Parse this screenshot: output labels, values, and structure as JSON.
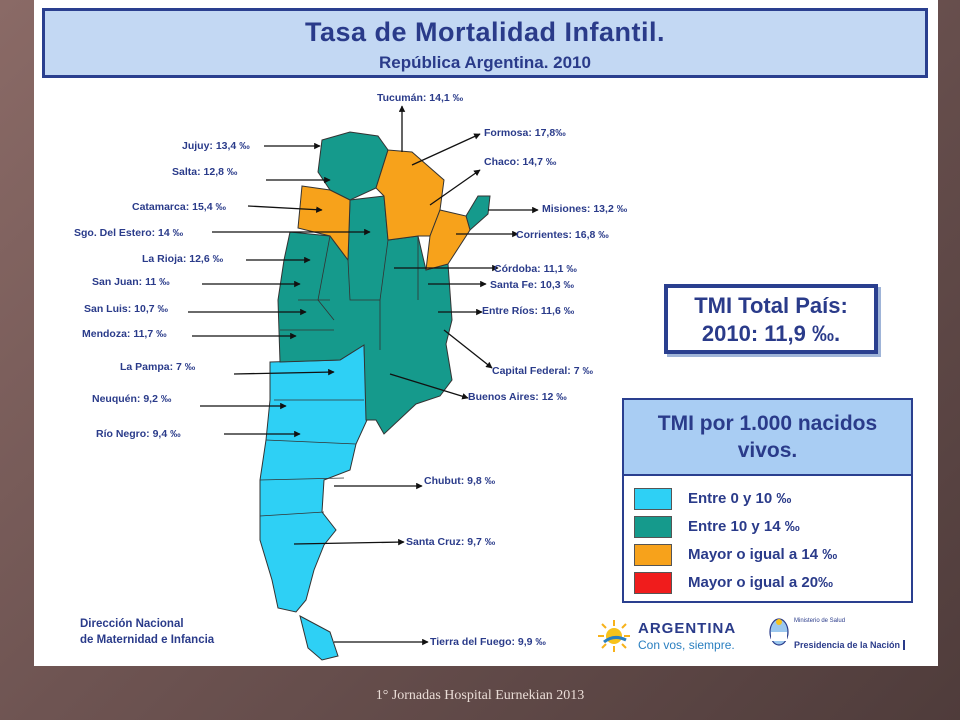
{
  "title": {
    "main": "Tasa de Mortalidad Infantil.",
    "sub": "República Argentina. 2010"
  },
  "colors": {
    "range_0_10": "#2ed0f5",
    "range_10_14": "#159a8c",
    "range_ge14": "#f7a21b",
    "range_ge20": "#f01c1c",
    "text": "#2a3b8a"
  },
  "provinces": [
    {
      "label": "Tucumán: 14,1 ‰"
    },
    {
      "label": "Jujuy: 13,4 ‰"
    },
    {
      "label": "Formosa: 17,8‰"
    },
    {
      "label": "Chaco: 14,7 ‰"
    },
    {
      "label": "Salta: 12,8 ‰"
    },
    {
      "label": "Catamarca: 15,4 ‰"
    },
    {
      "label": "Misiones: 13,2 ‰"
    },
    {
      "label": "Sgo. Del Estero: 14 ‰"
    },
    {
      "label": "Corrientes: 16,8 ‰"
    },
    {
      "label": "La Rioja: 12,6 ‰"
    },
    {
      "label": "Córdoba: 11,1 ‰"
    },
    {
      "label": "San Juan: 11 ‰"
    },
    {
      "label": "Santa Fe: 10,3 ‰"
    },
    {
      "label": "San Luis: 10,7 ‰"
    },
    {
      "label": "Entre Ríos: 11,6 ‰"
    },
    {
      "label": "Mendoza: 11,7 ‰"
    },
    {
      "label": "Capital Federal: 7 ‰"
    },
    {
      "label": "La Pampa: 7 ‰"
    },
    {
      "label": "Buenos Aires: 12 ‰"
    },
    {
      "label": "Neuquén: 9,2 ‰"
    },
    {
      "label": "Río Negro: 9,4 ‰"
    },
    {
      "label": "Chubut: 9,8 ‰"
    },
    {
      "label": "Santa Cruz: 9,7 ‰"
    },
    {
      "label": "Tierra del Fuego: 9,9 ‰"
    }
  ],
  "tmi_total": {
    "line1": "TMI Total País:",
    "line2": "2010: 11,9 ‰."
  },
  "legend": {
    "title_line1": "TMI por 1.000 nacidos",
    "title_line2": "vivos.",
    "items": [
      {
        "label": "Entre 0 y 10 ‰"
      },
      {
        "label": "Entre 10 y 14 ‰"
      },
      {
        "label": "Mayor o igual a 14 ‰"
      },
      {
        "label": "Mayor o igual a 20‰"
      }
    ]
  },
  "footer": {
    "org_line1": "Dirección Nacional",
    "org_line2": "de Maternidad e Infancia",
    "country": "ARGENTINA",
    "slogan": "Con vos, siempre.",
    "ministry_small": "Ministerio de Salud",
    "ministry_presidency": "Presidencia de la Nación"
  },
  "caption": "1° Jornadas Hospital Eurnekian 2013"
}
